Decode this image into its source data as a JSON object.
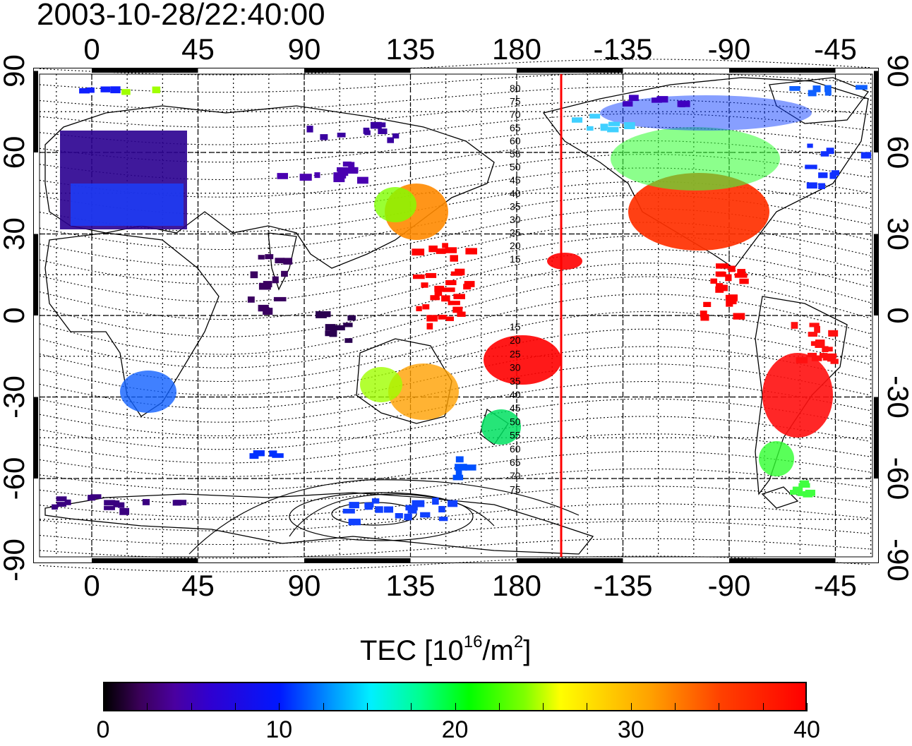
{
  "title": "2003-10-28/22:40:00",
  "map": {
    "top_lon_labels": [
      "0",
      "45",
      "90",
      "135",
      "180",
      "-135",
      "-90",
      "-45"
    ],
    "bottom_lon_labels": [
      "0",
      "45",
      "90",
      "135",
      "180",
      "-135",
      "-90",
      "-45"
    ],
    "left_lat_labels": [
      "90",
      "60",
      "30",
      "0",
      "-30",
      "-60",
      "-90"
    ],
    "right_lat_labels": [
      "90",
      "60",
      "30",
      "0",
      "-30",
      "-60",
      "-90"
    ],
    "contour_labels_north": [
      "80",
      "75",
      "70",
      "65",
      "60",
      "55",
      "50",
      "45",
      "40",
      "35",
      "30",
      "25",
      "20",
      "15"
    ],
    "contour_labels_south": [
      "15",
      "20",
      "25",
      "30",
      "35",
      "40",
      "45",
      "50",
      "55",
      "60",
      "65",
      "70",
      "75"
    ],
    "dateline_color": "#ff0000",
    "color_regions": [
      {
        "region": "Europe",
        "level": "low",
        "color": "#2a0090"
      },
      {
        "region": "Japan",
        "level": "high",
        "color": "#ff8000"
      },
      {
        "region": "North America",
        "level": "high",
        "color": "#ff3000"
      },
      {
        "region": "South America",
        "level": "high",
        "color": "#ff0000"
      },
      {
        "region": "Australia",
        "level": "mid",
        "color": "#00e060"
      },
      {
        "region": "Antarctica",
        "level": "low",
        "color": "#0040ff"
      }
    ]
  },
  "colorbar": {
    "title_prefix": "TEC  [10",
    "title_sup1": "16",
    "title_mid": "/m",
    "title_sup2": "2",
    "title_suffix": "]",
    "min": 0,
    "max": 40,
    "ticks": [
      "0",
      "10",
      "20",
      "30",
      "40"
    ]
  }
}
